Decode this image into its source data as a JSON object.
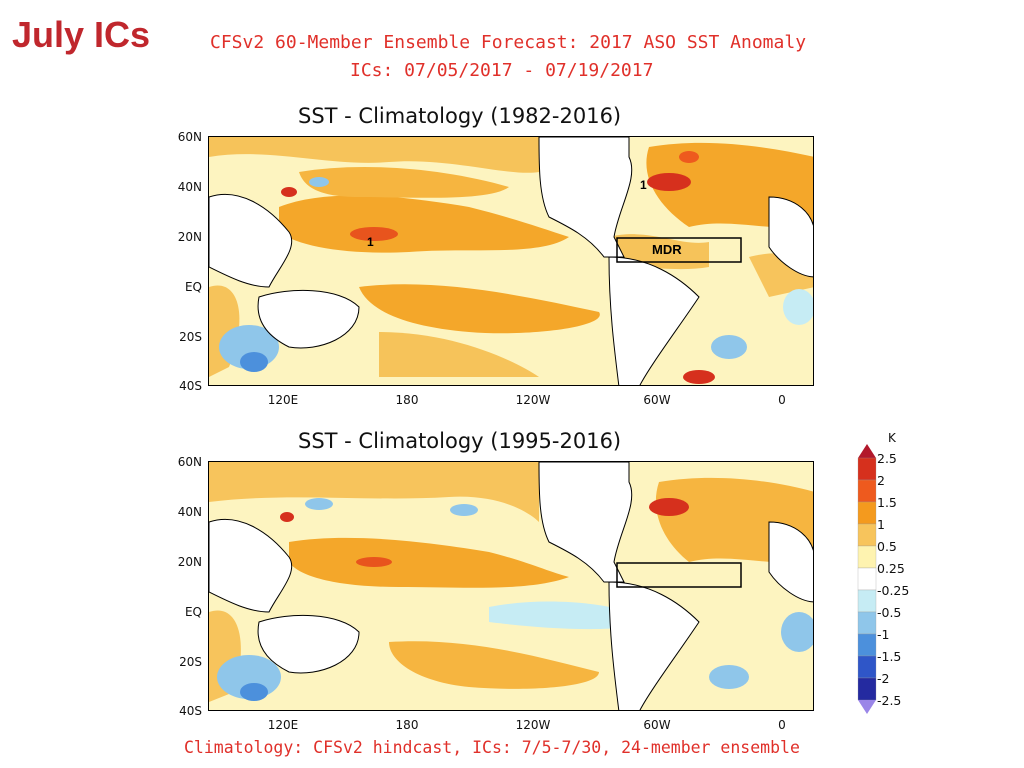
{
  "slide_title": "July ICs",
  "header": {
    "line1": "CFSv2 60-Member Ensemble Forecast: 2017 ASO SST Anomaly",
    "line2": "ICs: 07/05/2017 - 07/19/2017"
  },
  "panels": [
    {
      "title": "SST - Climatology (1982-2016)",
      "region_label": "MDR",
      "contour_labels": [
        "1",
        "1"
      ]
    },
    {
      "title": "SST - Climatology (1995-2016)",
      "region_label": ""
    }
  ],
  "axes": {
    "y_ticks": [
      "60N",
      "40N",
      "20N",
      "EQ",
      "20S",
      "40S"
    ],
    "x_ticks": [
      "120E",
      "180",
      "120W",
      "60W",
      "0"
    ]
  },
  "colorbar": {
    "unit": "K",
    "levels": [
      "2.5",
      "2",
      "1.5",
      "1",
      "0.5",
      "0.25",
      "-0.25",
      "-0.5",
      "-1",
      "-1.5",
      "-2",
      "-2.5"
    ],
    "colors": [
      "#b2182b",
      "#d6301d",
      "#ee5a1e",
      "#f49a1e",
      "#f7c45c",
      "#fef3b0",
      "#ffffff",
      "#c6ecf4",
      "#8fc6ea",
      "#4c90dc",
      "#2f56c8",
      "#242aa0",
      "#9a86e8"
    ]
  },
  "footer": "Climatology: CFSv2 hindcast, ICs: 7/5-7/30, 24-member ensemble"
}
